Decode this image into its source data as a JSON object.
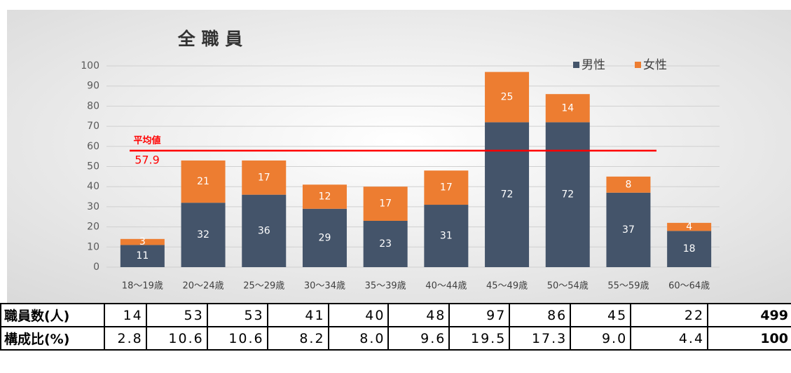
{
  "chart_data": {
    "type": "stacked_bar",
    "title": "全 職 員",
    "categories": [
      "18～19歳",
      "20～24歳",
      "25～29歳",
      "30～34歳",
      "35～39歳",
      "40～44歳",
      "45～49歳",
      "50～54歳",
      "55～59歳",
      "60～64歳"
    ],
    "series": [
      {
        "name": "男性",
        "color": "#44546a",
        "values": [
          11,
          32,
          36,
          29,
          23,
          31,
          72,
          72,
          37,
          18
        ]
      },
      {
        "name": "女性",
        "color": "#ed7d31",
        "values": [
          3,
          21,
          17,
          12,
          17,
          17,
          25,
          14,
          8,
          4
        ]
      }
    ],
    "ylim": [
      0,
      100
    ],
    "yticks": [
      0,
      10,
      20,
      30,
      40,
      50,
      60,
      70,
      80,
      90,
      100
    ],
    "grid": true,
    "legend": "top-right",
    "average": {
      "label": "平均値",
      "value": 57.9,
      "color": "#ff0000"
    }
  },
  "table": {
    "rows": [
      [
        "職員数(人)",
        "14",
        "53",
        "53",
        "41",
        "40",
        "48",
        "97",
        "86",
        "45",
        "22",
        "499"
      ],
      [
        "構成比(%)",
        "2.8",
        "10.6",
        "10.6",
        "8.2",
        "8.0",
        "9.6",
        "19.5",
        "17.3",
        "9.0",
        "4.4",
        "100"
      ]
    ]
  }
}
